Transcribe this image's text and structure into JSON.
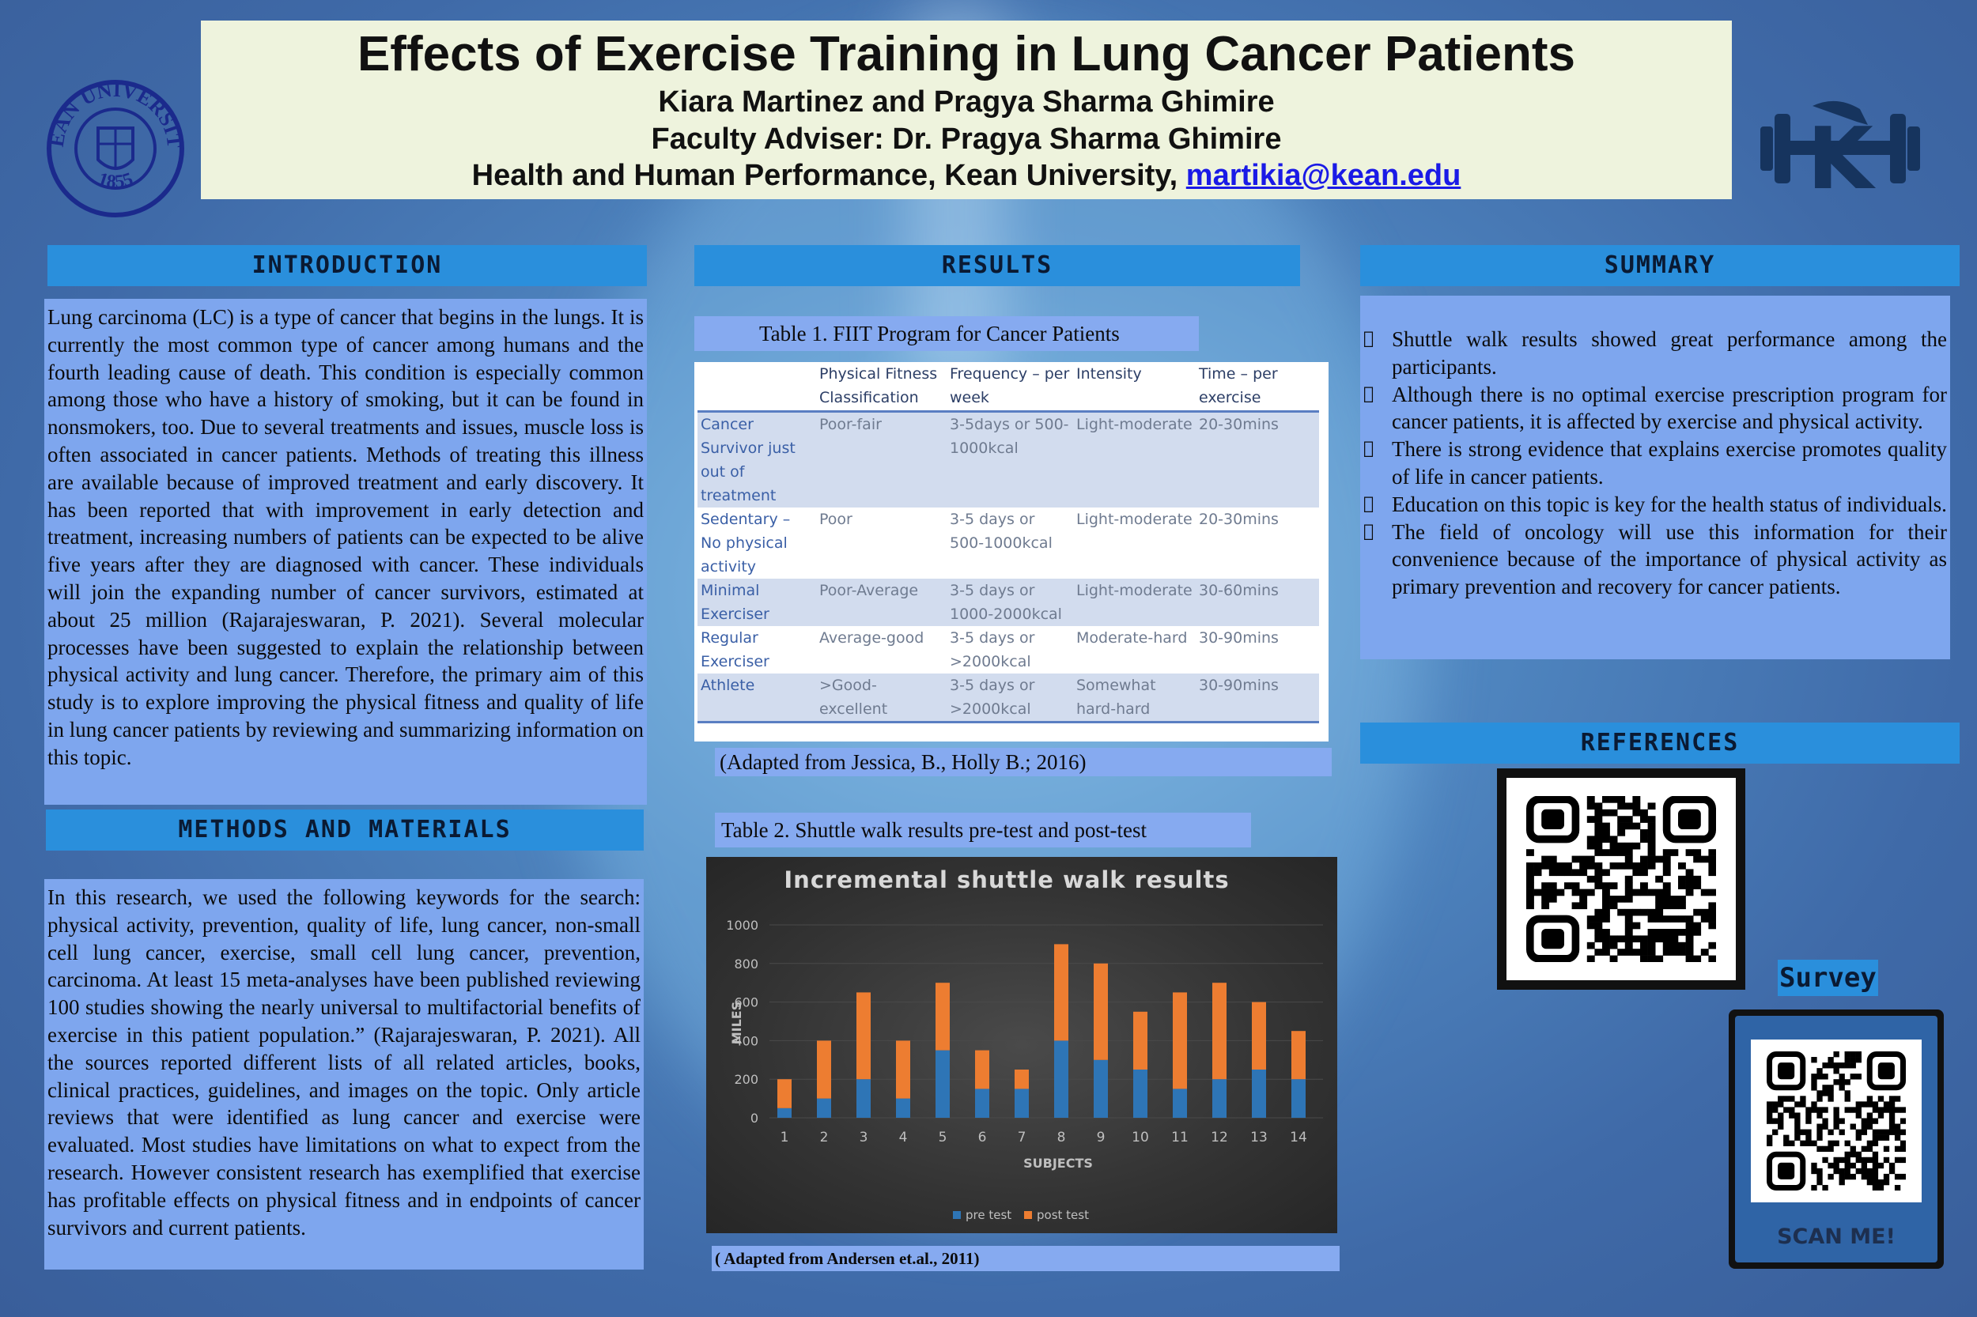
{
  "title": {
    "main": "Effects of Exercise Training in Lung Cancer Patients",
    "authors": "Kiara Martinez and Pragya Sharma Ghimire",
    "adviser": "Faculty Adviser: Dr. Pragya Sharma Ghimire",
    "affiliation": "Health and Human Performance, Kean University, ",
    "email": "martikia@kean.edu"
  },
  "logos": {
    "left_icon": "kean-university-seal-icon",
    "left_text": "KEAN UNIVERSITY",
    "left_year": "1855",
    "right_icon": "cougar-dumbbell-icon",
    "right_letter": "K"
  },
  "introduction": {
    "heading": "INTRODUCTION",
    "body": "Lung carcinoma (LC) is a type of cancer that begins in the lungs. It is currently the most common type of cancer among humans and the fourth leading cause of death.  This condition is especially common among those who have a history of smoking, but it can be found in nonsmokers, too.  Due to several treatments and issues, muscle loss is often associated in cancer patients.  Methods of treating this illness are available because of improved treatment and early discovery.  It has been reported that with improvement in early detection and treatment, increasing numbers of patients can be expected to be alive five years after they are diagnosed with cancer.  These individuals will join the expanding number of cancer survivors, estimated at about 25 million (Rajarajeswaran, P. 2021).  Several molecular processes have been suggested to explain the relationship between physical activity and lung cancer.  Therefore, the primary aim of this study is to explore improving the physical fitness and quality of life in lung cancer patients by reviewing and summarizing information on this topic."
  },
  "methods": {
    "heading": "METHODS AND MATERIALS",
    "body": "In this research, we used the following keywords for the search: physical activity, prevention, quality of life, lung cancer, non-small cell lung cancer, exercise, small cell lung cancer, prevention, carcinoma. At least 15 meta-analyses have been published reviewing 100 studies showing the nearly universal to multifactorial benefits of exercise in this patient population.” (Rajarajeswaran, P. 2021). All the sources reported different lists of all related articles, books, clinical practices, guidelines, and images on the topic. Only article reviews that were identified as lung cancer and exercise were evaluated. Most studies have limitations on what to expect from the research. However consistent research has exemplified that exercise has profitable effects on physical fitness and in endpoints of cancer survivors and current patients."
  },
  "results": {
    "heading": "RESULTS",
    "table1_caption": "Table 1. FIIT Program for Cancer Patients",
    "table1_headers": [
      "",
      "Physical Fitness Classification",
      "Frequency – per week",
      "Intensity",
      "Time – per exercise"
    ],
    "table1_rows": [
      [
        "Cancer Survivor just out of treatment",
        "Poor-fair",
        "3-5days or 500-1000kcal",
        "Light-moderate",
        "20-30mins"
      ],
      [
        "Sedentary – No physical activity",
        "Poor",
        "3-5 days or 500-1000kcal",
        "Light-moderate",
        "20-30mins"
      ],
      [
        "Minimal Exerciser",
        "Poor-Average",
        "3-5 days or 1000-2000kcal",
        "Light-moderate",
        "30-60mins"
      ],
      [
        "Regular Exerciser",
        "Average-good",
        "3-5 days or >2000kcal",
        "Moderate-hard",
        "30-90mins"
      ],
      [
        "Athlete",
        ">Good-excellent",
        "3-5 days or >2000kcal",
        "Somewhat hard-hard",
        "30-90mins"
      ]
    ],
    "table1_source": "(Adapted from Jessica, B., Holly B.; 2016)",
    "table2_caption": "Table 2. Shuttle walk results pre-test and post-test",
    "table2_source": "( Adapted from Andersen et.al., 2011)"
  },
  "chart_data": {
    "type": "bar",
    "stacked": true,
    "title": "Incremental shuttle walk results",
    "xlabel": "SUBJECTS",
    "ylabel": "MILES",
    "ylim": [
      0,
      1000
    ],
    "yticks": [
      "0",
      "200",
      "400",
      "600",
      "800",
      "1000"
    ],
    "categories": [
      "1",
      "2",
      "3",
      "4",
      "5",
      "6",
      "7",
      "8",
      "9",
      "10",
      "11",
      "12",
      "13",
      "14"
    ],
    "series": [
      {
        "name": "pre test",
        "color": "#2e75b6",
        "values": [
          50,
          100,
          200,
          100,
          350,
          150,
          150,
          400,
          300,
          250,
          150,
          200,
          250,
          200
        ]
      },
      {
        "name": "post test",
        "color": "#ed7d31",
        "values": [
          150,
          300,
          450,
          300,
          350,
          200,
          100,
          500,
          500,
          300,
          500,
          500,
          350,
          250
        ]
      }
    ],
    "legend": "bottom"
  },
  "summary": {
    "heading": "SUMMARY",
    "bullet_glyph": "",
    "items": [
      "Shuttle walk results showed great performance among the participants.",
      "Although there is no optimal exercise prescription program for cancer patients, it is affected by exercise and physical activity.",
      "There is strong evidence that explains exercise promotes quality of life in cancer patients.",
      "Education on this topic is key for the health status of individuals.",
      "The field of oncology will use this information for their convenience because of the importance of physical activity as primary prevention and recovery for cancer patients."
    ]
  },
  "references": {
    "heading": "REFERENCES",
    "qr_icon": "qr-code-icon"
  },
  "survey": {
    "label": "Survey",
    "scan_text": "SCAN ME!",
    "qr_icon": "qr-code-icon"
  },
  "colors": {
    "header_bar": "#2a8fdc",
    "text_panel": "#7ea6ee",
    "title_bg": "#eef3dd",
    "pre_test": "#2e75b6",
    "post_test": "#ed7d31"
  }
}
